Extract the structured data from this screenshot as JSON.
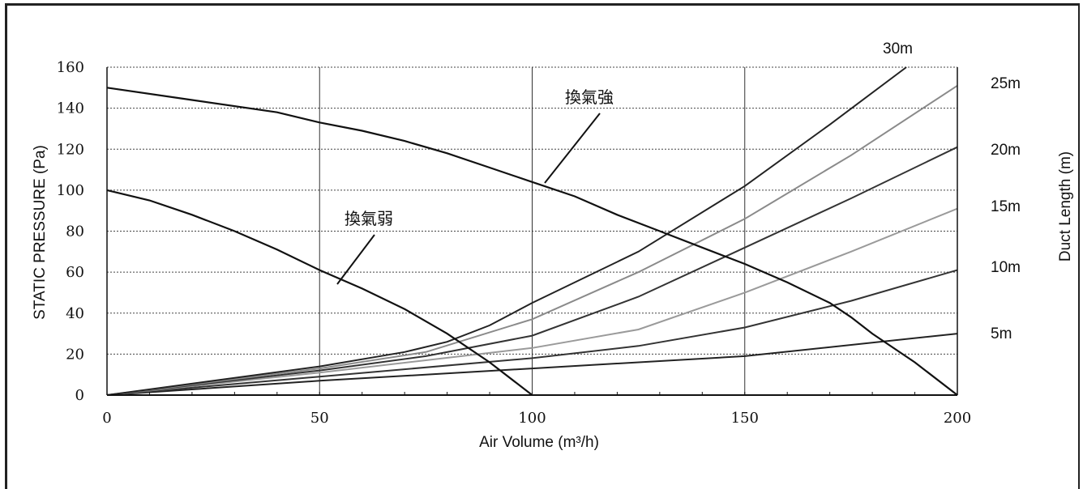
{
  "chart_data": {
    "type": "line",
    "xlabel": "Air Volume  (m³/h)",
    "ylabel": "STATIC PRESSURE  (Pa)",
    "y2label": "Duct Length  (m)",
    "xlim": [
      0,
      200
    ],
    "ylim": [
      0,
      160
    ],
    "x_ticks": [
      "0",
      "50",
      "100",
      "150",
      "200"
    ],
    "y_ticks": [
      "0",
      "20",
      "40",
      "60",
      "80",
      "100",
      "120",
      "140",
      "160"
    ],
    "grid": "horizontal dashed, vertical solid",
    "fan_curves": [
      {
        "name": "換氣強",
        "points": [
          [
            0,
            150
          ],
          [
            20,
            144
          ],
          [
            40,
            138
          ],
          [
            50,
            133
          ],
          [
            60,
            129
          ],
          [
            70,
            124
          ],
          [
            80,
            118
          ],
          [
            90,
            111
          ],
          [
            100,
            104
          ],
          [
            110,
            97
          ],
          [
            120,
            88
          ],
          [
            130,
            80
          ],
          [
            140,
            72
          ],
          [
            150,
            64
          ],
          [
            160,
            55
          ],
          [
            170,
            45
          ],
          [
            175,
            38
          ],
          [
            180,
            30
          ],
          [
            190,
            16
          ],
          [
            200,
            0
          ]
        ]
      },
      {
        "name": "換氣弱",
        "points": [
          [
            0,
            100
          ],
          [
            10,
            95
          ],
          [
            20,
            88
          ],
          [
            30,
            80
          ],
          [
            40,
            71
          ],
          [
            50,
            61
          ],
          [
            60,
            52
          ],
          [
            70,
            42
          ],
          [
            80,
            30
          ],
          [
            90,
            16
          ],
          [
            100,
            0
          ]
        ]
      }
    ],
    "duct_curves": [
      {
        "label": "5m",
        "color": "#222222",
        "points": [
          [
            0,
            0
          ],
          [
            50,
            7
          ],
          [
            100,
            13
          ],
          [
            150,
            19
          ],
          [
            200,
            30
          ]
        ]
      },
      {
        "label": "10m",
        "color": "#333333",
        "points": [
          [
            0,
            0
          ],
          [
            50,
            9
          ],
          [
            100,
            18
          ],
          [
            125,
            24
          ],
          [
            150,
            33
          ],
          [
            175,
            46
          ],
          [
            200,
            61
          ]
        ]
      },
      {
        "label": "15m",
        "color": "#9a9a9a",
        "points": [
          [
            0,
            0
          ],
          [
            50,
            11
          ],
          [
            75,
            17
          ],
          [
            100,
            23
          ],
          [
            125,
            32
          ],
          [
            150,
            50
          ],
          [
            175,
            70
          ],
          [
            200,
            91
          ]
        ]
      },
      {
        "label": "20m",
        "color": "#333333",
        "points": [
          [
            0,
            0
          ],
          [
            50,
            12
          ],
          [
            75,
            19
          ],
          [
            100,
            29
          ],
          [
            125,
            48
          ],
          [
            150,
            72
          ],
          [
            175,
            96
          ],
          [
            200,
            121
          ]
        ]
      },
      {
        "label": "25m",
        "color": "#8a8a8a",
        "points": [
          [
            0,
            0
          ],
          [
            50,
            13
          ],
          [
            75,
            21
          ],
          [
            100,
            37
          ],
          [
            125,
            60
          ],
          [
            150,
            86
          ],
          [
            175,
            117
          ],
          [
            200,
            151
          ]
        ]
      },
      {
        "label": "30m",
        "color": "#222222",
        "points": [
          [
            0,
            0
          ],
          [
            50,
            14
          ],
          [
            70,
            21
          ],
          [
            80,
            26
          ],
          [
            90,
            34
          ],
          [
            100,
            45
          ],
          [
            125,
            70
          ],
          [
            150,
            102
          ],
          [
            170,
            132
          ],
          [
            188,
            160
          ]
        ]
      }
    ],
    "right_labels": [
      "30m",
      "25m",
      "20m",
      "15m",
      "10m",
      "5m"
    ]
  }
}
